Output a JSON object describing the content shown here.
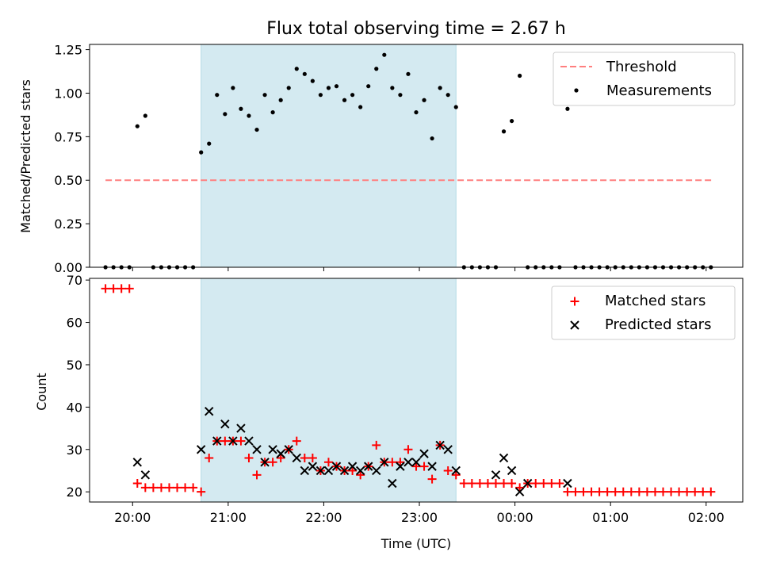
{
  "chart_data": [
    {
      "type": "scatter",
      "title": "Flux total observing time = 2.67 h",
      "xlabel": "",
      "ylabel": "Matched/Predicted stars",
      "ylim": [
        0,
        1.28
      ],
      "yticks": [
        "0.00",
        "0.25",
        "0.50",
        "0.75",
        "1.00",
        "1.25"
      ],
      "xlim": [
        "19:33",
        "02:23"
      ],
      "shaded_interval": [
        "20:43",
        "23:23"
      ],
      "shade_color": "#d4eaf1",
      "threshold": {
        "name": "Threshold",
        "value": 0.5,
        "x": [
          "19:43",
          "02:05"
        ],
        "color": "#ff7f7f"
      },
      "measurements": {
        "name": "Measurements",
        "color": "#000000",
        "x": [
          "19:43",
          "19:48",
          "19:53",
          "19:58",
          "20:03",
          "20:08",
          "20:13",
          "20:18",
          "20:23",
          "20:28",
          "20:33",
          "20:38",
          "20:43",
          "20:48",
          "20:53",
          "20:58",
          "21:03",
          "21:08",
          "21:13",
          "21:18",
          "21:23",
          "21:28",
          "21:33",
          "21:38",
          "21:43",
          "21:48",
          "21:53",
          "21:58",
          "22:03",
          "22:08",
          "22:13",
          "22:18",
          "22:23",
          "22:28",
          "22:33",
          "22:38",
          "22:43",
          "22:48",
          "22:53",
          "22:58",
          "23:03",
          "23:08",
          "23:13",
          "23:18",
          "23:23",
          "23:28",
          "23:33",
          "23:38",
          "23:43",
          "23:48",
          "23:53",
          "23:58",
          "00:03",
          "00:08",
          "00:13",
          "00:18",
          "00:23",
          "00:28",
          "00:33",
          "00:38",
          "00:43",
          "00:48",
          "00:53",
          "00:58",
          "01:03",
          "01:08",
          "01:13",
          "01:18",
          "01:23",
          "01:28",
          "01:33",
          "01:38",
          "01:43",
          "01:48",
          "01:53",
          "01:58",
          "02:03"
        ],
        "y": [
          0,
          0,
          0,
          0,
          0.81,
          0.87,
          0,
          0,
          0,
          0,
          0,
          0,
          0.66,
          0.71,
          0.99,
          0.88,
          1.03,
          0.91,
          0.87,
          0.79,
          0.99,
          0.89,
          0.96,
          1.03,
          1.14,
          1.11,
          1.07,
          0.99,
          1.03,
          1.04,
          0.96,
          0.99,
          0.92,
          1.04,
          1.14,
          1.22,
          1.03,
          0.99,
          1.11,
          0.89,
          0.96,
          0.74,
          1.03,
          0.99,
          0.92,
          0,
          0,
          0,
          0,
          0,
          0.78,
          0.84,
          1.1,
          0,
          0,
          0,
          0,
          0,
          0.91,
          0,
          0,
          0,
          0,
          0,
          0,
          0,
          0,
          0,
          0,
          0,
          0,
          0,
          0,
          0,
          0,
          0,
          0
        ]
      },
      "legend": {
        "position": "top-right",
        "entries": [
          "Threshold",
          "Measurements"
        ]
      }
    },
    {
      "type": "scatter",
      "title": "",
      "xlabel": "Time (UTC)",
      "ylabel": "Count",
      "ylim": [
        17.6,
        70.4
      ],
      "yticks": [
        "20",
        "30",
        "40",
        "50",
        "60",
        "70"
      ],
      "xlim": [
        "19:33",
        "02:23"
      ],
      "xticks": [
        "20:00",
        "21:00",
        "22:00",
        "23:00",
        "00:00",
        "01:00",
        "02:00"
      ],
      "shaded_interval": [
        "20:43",
        "23:23"
      ],
      "shade_color": "#d4eaf1",
      "series": [
        {
          "name": "Matched stars",
          "color": "#ff0000",
          "marker": "+",
          "x": [
            "19:43",
            "19:48",
            "19:53",
            "19:58",
            "20:03",
            "20:08",
            "20:13",
            "20:18",
            "20:23",
            "20:28",
            "20:33",
            "20:38",
            "20:43",
            "20:48",
            "20:53",
            "20:58",
            "21:03",
            "21:08",
            "21:13",
            "21:18",
            "21:23",
            "21:28",
            "21:33",
            "21:38",
            "21:43",
            "21:48",
            "21:53",
            "21:58",
            "22:03",
            "22:08",
            "22:13",
            "22:18",
            "22:23",
            "22:28",
            "22:33",
            "22:38",
            "22:43",
            "22:48",
            "22:53",
            "22:58",
            "23:03",
            "23:08",
            "23:13",
            "23:18",
            "23:23",
            "23:28",
            "23:33",
            "23:38",
            "23:43",
            "23:48",
            "23:53",
            "23:58",
            "00:03",
            "00:08",
            "00:13",
            "00:18",
            "00:23",
            "00:28",
            "00:33",
            "00:38",
            "00:43",
            "00:48",
            "00:53",
            "00:58",
            "01:03",
            "01:08",
            "01:13",
            "01:18",
            "01:23",
            "01:28",
            "01:33",
            "01:38",
            "01:43",
            "01:48",
            "01:53",
            "01:58",
            "02:03"
          ],
          "y": [
            68,
            68,
            68,
            68,
            22,
            21,
            21,
            21,
            21,
            21,
            21,
            21,
            20,
            28,
            32,
            32,
            32,
            32,
            28,
            24,
            27,
            27,
            28,
            30,
            32,
            28,
            28,
            25,
            27,
            26,
            25,
            25,
            24,
            26,
            31,
            27,
            27,
            27,
            30,
            26,
            26,
            23,
            31,
            25,
            24,
            22,
            22,
            22,
            22,
            22,
            22,
            22,
            21,
            22,
            22,
            22,
            22,
            22,
            20,
            20,
            20,
            20,
            20,
            20,
            20,
            20,
            20,
            20,
            20,
            20,
            20,
            20,
            20,
            20,
            20,
            20,
            20
          ]
        },
        {
          "name": "Predicted stars",
          "color": "#000000",
          "marker": "x",
          "x": [
            "20:03",
            "20:08",
            "20:43",
            "20:48",
            "20:53",
            "20:58",
            "21:03",
            "21:08",
            "21:13",
            "21:18",
            "21:23",
            "21:28",
            "21:33",
            "21:38",
            "21:43",
            "21:48",
            "21:53",
            "21:58",
            "22:03",
            "22:08",
            "22:13",
            "22:18",
            "22:23",
            "22:28",
            "22:33",
            "22:38",
            "22:43",
            "22:48",
            "22:53",
            "22:58",
            "23:03",
            "23:08",
            "23:13",
            "23:18",
            "23:23",
            "23:48",
            "23:53",
            "23:58",
            "00:03",
            "00:08",
            "00:33"
          ],
          "y": [
            27,
            24,
            30,
            39,
            32,
            36,
            32,
            35,
            32,
            30,
            27,
            30,
            29,
            30,
            28,
            25,
            26,
            25,
            25,
            26,
            25,
            26,
            25,
            26,
            25,
            27,
            22,
            26,
            27,
            27,
            29,
            26,
            31,
            30,
            25,
            24,
            28,
            25,
            20,
            22,
            22
          ]
        }
      ],
      "legend": {
        "position": "top-right",
        "entries": [
          "Matched stars",
          "Predicted stars"
        ]
      }
    }
  ]
}
